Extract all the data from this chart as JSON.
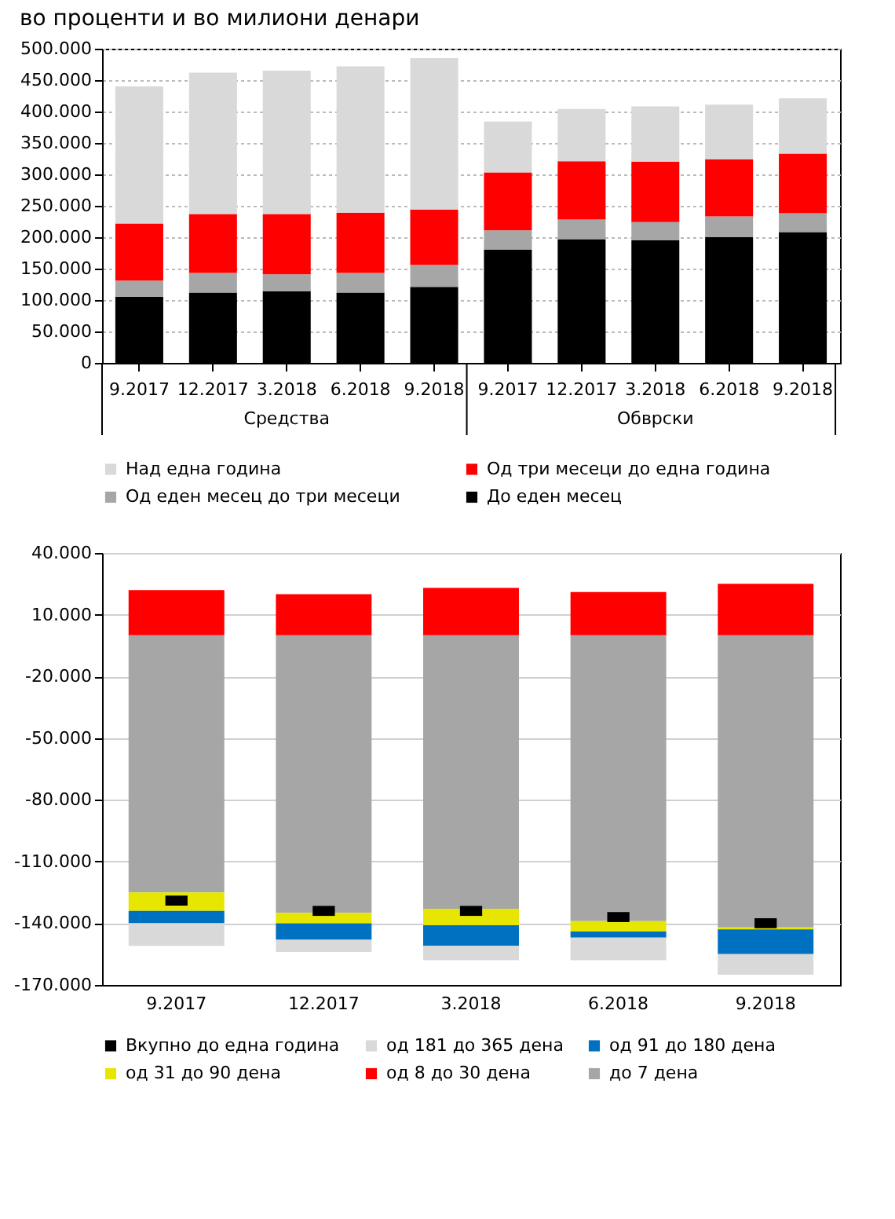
{
  "chart_data": [
    {
      "type": "bar",
      "title": "во проценти и во милиони денари",
      "stacked": true,
      "grid": "y",
      "legend": "bottom",
      "categories": [
        "9.2017",
        "12.2017",
        "3.2018",
        "6.2018",
        "9.2018",
        "9.2017",
        "12.2017",
        "3.2018",
        "6.2018",
        "9.2018"
      ],
      "annotations": [
        "Средства",
        "Обврски"
      ],
      "ylim": [
        0,
        500000
      ],
      "yticks": [
        {
          "value": 0,
          "label": "0"
        },
        {
          "value": 50000,
          "label": "50.000"
        },
        {
          "value": 100000,
          "label": "100.000"
        },
        {
          "value": 150000,
          "label": "150.000"
        },
        {
          "value": 200000,
          "label": "200.000"
        },
        {
          "value": 250000,
          "label": "250.000"
        },
        {
          "value": 300000,
          "label": "300.000"
        },
        {
          "value": 350000,
          "label": "350.000"
        },
        {
          "value": 400000,
          "label": "400.000"
        },
        {
          "value": 450000,
          "label": "450.000"
        },
        {
          "value": 500000,
          "label": "500.000"
        }
      ],
      "series": [
        {
          "name": "До еден месец",
          "color": "#000000",
          "values": [
            105000,
            112000,
            114000,
            112000,
            121000,
            180000,
            197000,
            195000,
            200000,
            208000
          ]
        },
        {
          "name": "Од еден месец до три месеци",
          "color": "#a6a6a6",
          "values": [
            26000,
            31000,
            27000,
            31000,
            35000,
            31000,
            31000,
            29000,
            33000,
            30000
          ]
        },
        {
          "name": "Од три месеци до една година",
          "color": "#ff0000",
          "values": [
            91000,
            94000,
            96000,
            96000,
            88000,
            92000,
            93000,
            96000,
            91000,
            95000
          ]
        },
        {
          "name": "Над една година",
          "color": "#d9d9d9",
          "values": [
            218000,
            225000,
            228000,
            233000,
            241000,
            81000,
            83000,
            88000,
            87000,
            88000
          ]
        }
      ]
    },
    {
      "type": "bar",
      "stacked": true,
      "grid": "y",
      "legend": "bottom",
      "categories": [
        "9.2017",
        "12.2017",
        "3.2018",
        "6.2018",
        "9.2018"
      ],
      "ylim": [
        -170000,
        40000
      ],
      "yticks": [
        {
          "value": -170000,
          "label": "-170.000"
        },
        {
          "value": -140000,
          "label": "-140.000"
        },
        {
          "value": -110000,
          "label": "-110.000"
        },
        {
          "value": -80000,
          "label": "-80.000"
        },
        {
          "value": -50000,
          "label": "-50.000"
        },
        {
          "value": -20000,
          "label": "-20.000"
        },
        {
          "value": 10000,
          "label": "10.000"
        },
        {
          "value": 40000,
          "label": "40.000"
        }
      ],
      "series": [
        {
          "name": "до 7 дена",
          "color": "#a6a6a6",
          "values": [
            -125000,
            -135000,
            -133000,
            -139000,
            -142000
          ]
        },
        {
          "name": "од 8 до 30 дена",
          "color": "#ff0000",
          "values": [
            22000,
            20000,
            23000,
            21000,
            25000
          ]
        },
        {
          "name": "од 31 до 90 дена",
          "color": "#e6e600",
          "values": [
            -9000,
            -5000,
            -8000,
            -5000,
            -1000
          ]
        },
        {
          "name": "од 91 до 180 дена",
          "color": "#0070c0",
          "values": [
            -6000,
            -8000,
            -10000,
            -3000,
            -12000
          ]
        },
        {
          "name": "од 181 до 365 дена",
          "color": "#d9d9d9",
          "values": [
            -11000,
            -6000,
            -7000,
            -11000,
            -10000
          ]
        },
        {
          "name": "Вкупно до една година",
          "type": "scatter",
          "color": "#000000",
          "values": [
            -129000,
            -134000,
            -134000,
            -137000,
            -140000
          ]
        }
      ]
    }
  ]
}
